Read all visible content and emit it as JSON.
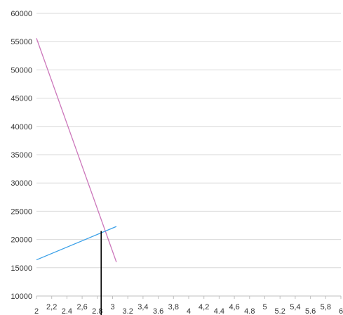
{
  "chart_data": {
    "type": "line",
    "title": "",
    "xlabel": "",
    "ylabel": "",
    "xlim": [
      2,
      6
    ],
    "ylim": [
      10000,
      60000
    ],
    "grid": "horizontal",
    "legend": "none",
    "y_ticks": [
      "10000",
      "15000",
      "20000",
      "25000",
      "30000",
      "35000",
      "40000",
      "45000",
      "50000",
      "55000",
      "60000"
    ],
    "x_ticks": [
      {
        "value": 2.0,
        "label": "2"
      },
      {
        "value": 2.2,
        "label": "2,2"
      },
      {
        "value": 2.4,
        "label": "2.4"
      },
      {
        "value": 2.6,
        "label": "2,6"
      },
      {
        "value": 2.8,
        "label": "2.8"
      },
      {
        "value": 3.0,
        "label": "3"
      },
      {
        "value": 3.2,
        "label": "3.2"
      },
      {
        "value": 3.4,
        "label": "3,4"
      },
      {
        "value": 3.6,
        "label": "3.6"
      },
      {
        "value": 3.8,
        "label": "3,8"
      },
      {
        "value": 4.0,
        "label": "4"
      },
      {
        "value": 4.2,
        "label": "4,2"
      },
      {
        "value": 4.4,
        "label": "4.4"
      },
      {
        "value": 4.6,
        "label": "4,6"
      },
      {
        "value": 4.8,
        "label": "4.8"
      },
      {
        "value": 5.0,
        "label": "5"
      },
      {
        "value": 5.2,
        "label": "5.2"
      },
      {
        "value": 5.4,
        "label": "5,4"
      },
      {
        "value": 5.6,
        "label": "5.6"
      },
      {
        "value": 5.8,
        "label": "5,8"
      },
      {
        "value": 6.0,
        "label": "6"
      }
    ],
    "series": [
      {
        "color": "#cc77bb",
        "points": [
          [
            2.0,
            55600
          ],
          [
            3.05,
            16000
          ]
        ]
      },
      {
        "color": "#3aa0e8",
        "points": [
          [
            2.0,
            16400
          ],
          [
            3.05,
            22300
          ]
        ]
      },
      {
        "color": "#000000",
        "points": [
          [
            2.85,
            21500
          ],
          [
            2.85,
            10000
          ]
        ]
      }
    ]
  }
}
